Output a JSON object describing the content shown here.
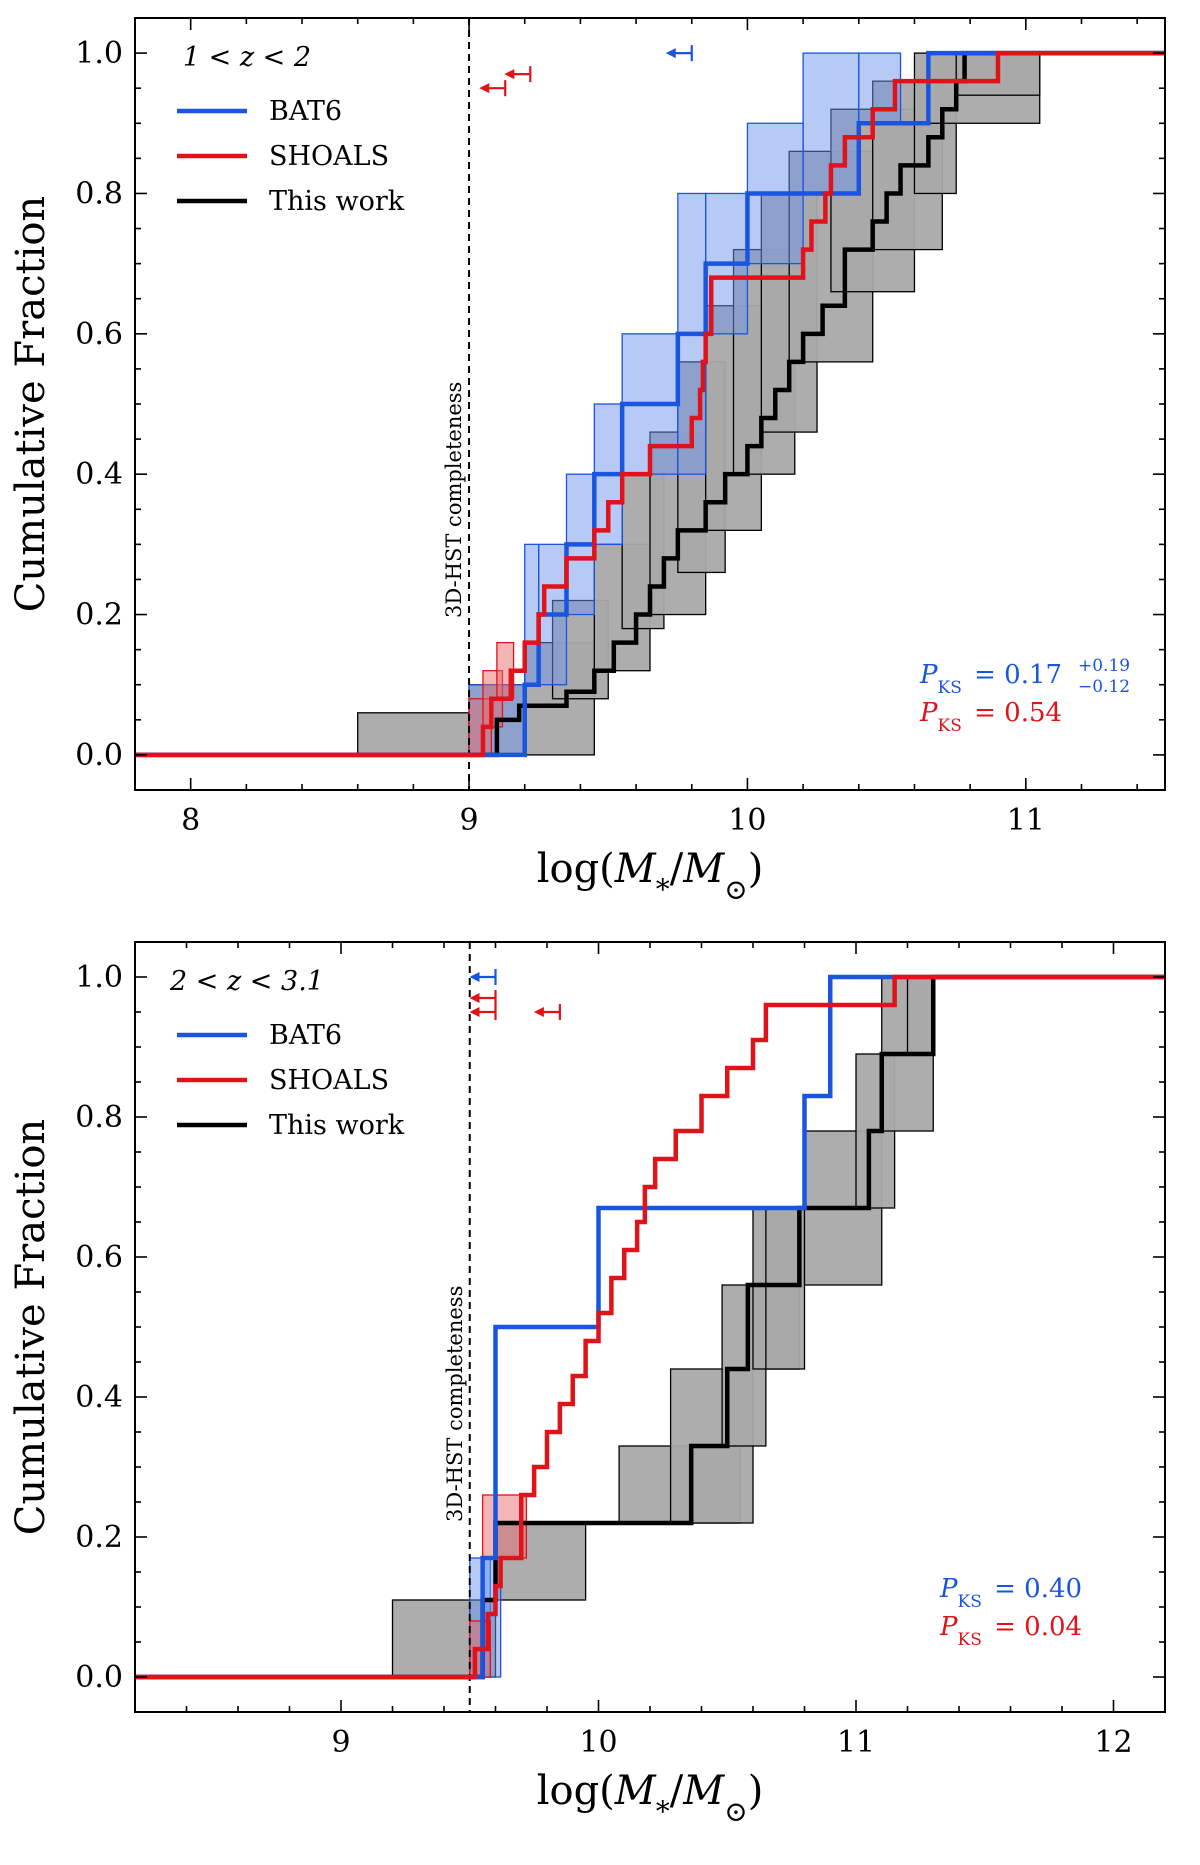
{
  "colors": {
    "bat6": "#1a55e0",
    "shoals": "#e0121a",
    "this_work": "#000000",
    "bat6_fill": "#6f95ee",
    "shoals_fill": "#e86c6c",
    "this_fill": "#a9a9a9"
  },
  "chart_data": [
    {
      "type": "step",
      "title": "",
      "ylabel": "Cumulative Fraction",
      "xlabel": "log(M*/M⊙)",
      "xlim": [
        7.8,
        11.5
      ],
      "ylim": [
        -0.05,
        1.05
      ],
      "xticks": [
        8,
        9,
        10,
        11
      ],
      "yticks": [
        0.0,
        0.2,
        0.4,
        0.6,
        0.8,
        1.0
      ],
      "ytick_labels": [
        "0.0",
        "0.2",
        "0.4",
        "0.6",
        "0.8",
        "1.0"
      ],
      "completeness": {
        "x": 9.0,
        "label": "3D-HST completeness"
      },
      "legend": {
        "title": "1 < z < 2",
        "entries": [
          "BAT6",
          "SHOALS",
          "This work"
        ],
        "position": "upper-left"
      },
      "annotations": [
        {
          "name": "BAT6",
          "P": "P",
          "sub": "KS",
          "value": "= 0.17",
          "sup": "+0.19",
          "low": "−0.12"
        },
        {
          "name": "SHOALS",
          "P": "P",
          "sub": "KS",
          "value": "= 0.54"
        }
      ],
      "upper_limits": [
        {
          "series": "SHOALS",
          "x": 9.22,
          "y": 0.97
        },
        {
          "series": "SHOALS",
          "x": 9.13,
          "y": 0.95
        },
        {
          "series": "BAT6",
          "x": 9.8,
          "y": 1.0
        }
      ],
      "series": [
        {
          "name": "BAT6",
          "x": [
            9.2,
            9.25,
            9.35,
            9.45,
            9.55,
            9.75,
            9.85,
            10.0,
            10.4,
            10.65
          ],
          "y": [
            0.1,
            0.2,
            0.3,
            0.4,
            0.5,
            0.6,
            0.7,
            0.8,
            0.9,
            1.0
          ],
          "band": [
            [
              9.0,
              9.2,
              0.0,
              0.1
            ],
            [
              9.2,
              9.25,
              0.1,
              0.3
            ],
            [
              9.25,
              9.35,
              0.1,
              0.3
            ],
            [
              9.35,
              9.45,
              0.2,
              0.4
            ],
            [
              9.45,
              9.55,
              0.3,
              0.5
            ],
            [
              9.55,
              9.75,
              0.4,
              0.6
            ],
            [
              9.75,
              9.85,
              0.4,
              0.8
            ],
            [
              9.85,
              10.0,
              0.6,
              0.8
            ],
            [
              10.0,
              10.2,
              0.7,
              0.9
            ],
            [
              10.2,
              10.4,
              0.8,
              1.0
            ],
            [
              10.4,
              10.55,
              0.9,
              1.0
            ]
          ]
        },
        {
          "name": "SHOALS",
          "x": [
            9.05,
            9.08,
            9.15,
            9.2,
            9.25,
            9.27,
            9.35,
            9.45,
            9.5,
            9.55,
            9.65,
            9.8,
            9.83,
            9.84,
            9.85,
            9.87,
            10.2,
            10.23,
            10.28,
            10.3,
            10.35,
            10.45,
            10.53,
            10.57,
            10.87,
            10.9
          ],
          "y": [
            0.04,
            0.08,
            0.12,
            0.16,
            0.2,
            0.24,
            0.28,
            0.32,
            0.36,
            0.4,
            0.44,
            0.48,
            0.52,
            0.56,
            0.6,
            0.68,
            0.72,
            0.76,
            0.8,
            0.84,
            0.88,
            0.92,
            0.96,
            0.96,
            0.96,
            1.0
          ],
          "band": [
            [
              9.0,
              9.08,
              0.0,
              0.08
            ],
            [
              9.05,
              9.12,
              0.04,
              0.12
            ],
            [
              9.1,
              9.16,
              0.08,
              0.16
            ]
          ]
        },
        {
          "name": "This work",
          "x": [
            9.1,
            9.18,
            9.35,
            9.45,
            9.52,
            9.6,
            9.65,
            9.7,
            9.75,
            9.85,
            9.92,
            10.0,
            10.05,
            10.1,
            10.15,
            10.2,
            10.27,
            10.35,
            10.45,
            10.5,
            10.55,
            10.65,
            10.7,
            10.75,
            10.78
          ],
          "y": [
            0.05,
            0.07,
            0.09,
            0.12,
            0.16,
            0.2,
            0.24,
            0.28,
            0.32,
            0.36,
            0.4,
            0.44,
            0.48,
            0.52,
            0.56,
            0.6,
            0.64,
            0.72,
            0.76,
            0.8,
            0.84,
            0.88,
            0.92,
            0.96,
            1.0
          ],
          "band": [
            [
              8.6,
              9.0,
              0.0,
              0.06
            ],
            [
              9.0,
              9.2,
              0.0,
              0.1
            ],
            [
              9.2,
              9.45,
              0.0,
              0.16
            ],
            [
              9.3,
              9.5,
              0.08,
              0.22
            ],
            [
              9.45,
              9.65,
              0.12,
              0.3
            ],
            [
              9.55,
              9.7,
              0.18,
              0.4
            ],
            [
              9.65,
              9.85,
              0.2,
              0.46
            ],
            [
              9.75,
              9.92,
              0.26,
              0.56
            ],
            [
              9.85,
              10.05,
              0.32,
              0.64
            ],
            [
              9.95,
              10.17,
              0.4,
              0.72
            ],
            [
              10.05,
              10.25,
              0.46,
              0.8
            ],
            [
              10.15,
              10.45,
              0.56,
              0.86
            ],
            [
              10.3,
              10.6,
              0.66,
              0.92
            ],
            [
              10.45,
              10.7,
              0.72,
              0.96
            ],
            [
              10.6,
              10.75,
              0.8,
              1.0
            ],
            [
              10.65,
              11.05,
              0.9,
              1.0
            ],
            [
              10.75,
              11.05,
              0.94,
              1.0
            ]
          ]
        }
      ]
    },
    {
      "type": "step",
      "title": "",
      "ylabel": "Cumulative Fraction",
      "xlabel": "log(M*/M⊙)",
      "xlim": [
        8.2,
        12.2
      ],
      "ylim": [
        -0.05,
        1.05
      ],
      "xticks": [
        9,
        10,
        11,
        12
      ],
      "yticks": [
        0.0,
        0.2,
        0.4,
        0.6,
        0.8,
        1.0
      ],
      "ytick_labels": [
        "0.0",
        "0.2",
        "0.4",
        "0.6",
        "0.8",
        "1.0"
      ],
      "completeness": {
        "x": 9.5,
        "label": "3D-HST completeness"
      },
      "legend": {
        "title": "2 < z < 3.1",
        "entries": [
          "BAT6",
          "SHOALS",
          "This work"
        ],
        "position": "upper-left"
      },
      "annotations": [
        {
          "name": "BAT6",
          "P": "P",
          "sub": "KS",
          "value": "= 0.40"
        },
        {
          "name": "SHOALS",
          "P": "P",
          "sub": "KS",
          "value": "= 0.04"
        }
      ],
      "upper_limits": [
        {
          "series": "BAT6",
          "x": 9.6,
          "y": 1.0
        },
        {
          "series": "SHOALS",
          "x": 9.6,
          "y": 0.97
        },
        {
          "series": "SHOALS",
          "x": 9.6,
          "y": 0.95
        },
        {
          "series": "SHOALS",
          "x": 9.85,
          "y": 0.95
        }
      ],
      "series": [
        {
          "name": "BAT6",
          "x": [
            9.55,
            9.6,
            10.0,
            10.8,
            10.9
          ],
          "y": [
            0.17,
            0.5,
            0.67,
            0.83,
            1.0
          ],
          "band": [
            [
              9.5,
              9.58,
              0.0,
              0.17
            ],
            [
              9.55,
              9.62,
              0.0,
              0.17
            ]
          ]
        },
        {
          "name": "SHOALS",
          "x": [
            9.52,
            9.57,
            9.6,
            9.62,
            9.7,
            9.75,
            9.8,
            9.85,
            9.9,
            9.95,
            10.0,
            10.05,
            10.1,
            10.15,
            10.18,
            10.22,
            10.3,
            10.4,
            10.5,
            10.6,
            10.65,
            10.7,
            10.75,
            10.8,
            10.95,
            11.15
          ],
          "y": [
            0.04,
            0.09,
            0.13,
            0.17,
            0.26,
            0.3,
            0.35,
            0.39,
            0.43,
            0.48,
            0.52,
            0.57,
            0.61,
            0.65,
            0.7,
            0.74,
            0.78,
            0.83,
            0.87,
            0.91,
            0.96,
            0.96,
            0.96,
            0.96,
            0.96,
            1.0
          ],
          "band": [
            [
              9.55,
              9.72,
              0.17,
              0.26
            ],
            [
              9.5,
              9.58,
              0.0,
              0.08
            ]
          ]
        },
        {
          "name": "This work",
          "x": [
            9.55,
            9.6,
            9.62,
            10.36,
            10.5,
            10.58,
            10.78,
            11.05,
            11.1,
            11.2,
            11.3
          ],
          "y": [
            0.11,
            0.22,
            0.22,
            0.33,
            0.44,
            0.56,
            0.67,
            0.78,
            0.89,
            0.89,
            1.0
          ],
          "band": [
            [
              9.2,
              9.5,
              0.0,
              0.11
            ],
            [
              9.5,
              9.6,
              0.0,
              0.11
            ],
            [
              9.6,
              9.95,
              0.11,
              0.22
            ],
            [
              10.08,
              10.55,
              0.22,
              0.33
            ],
            [
              10.28,
              10.6,
              0.22,
              0.44
            ],
            [
              10.48,
              10.65,
              0.33,
              0.56
            ],
            [
              10.6,
              10.78,
              0.44,
              0.67
            ],
            [
              10.65,
              10.8,
              0.44,
              0.67
            ],
            [
              10.8,
              11.1,
              0.56,
              0.78
            ],
            [
              11.0,
              11.15,
              0.67,
              0.89
            ],
            [
              11.1,
              11.3,
              0.78,
              1.0
            ],
            [
              11.2,
              11.3,
              0.89,
              1.0
            ]
          ]
        }
      ]
    }
  ]
}
